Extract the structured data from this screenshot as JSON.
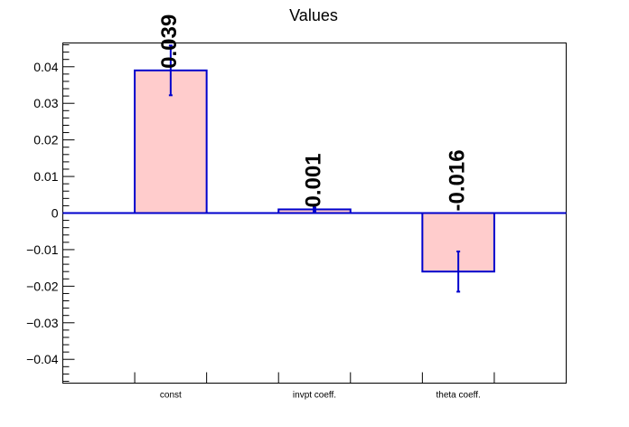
{
  "chart_data": {
    "type": "bar",
    "title": "Values",
    "xlabel": "",
    "ylabel": "",
    "categories": [
      "const",
      "invpt coeff.",
      "theta coeff."
    ],
    "values": [
      0.039,
      0.001,
      -0.016
    ],
    "errors": [
      0.0068,
      0.0005,
      0.0055
    ],
    "data_labels": [
      "0.039",
      "0.001",
      "-0.016"
    ],
    "ylim": [
      -0.0465,
      0.0465
    ],
    "yticks": [
      -0.04,
      -0.03,
      -0.02,
      -0.01,
      0,
      0.01,
      0.02,
      0.03,
      0.04
    ],
    "ytick_labels": [
      "−0.04",
      "−0.03",
      "−0.02",
      "−0.01",
      "0",
      "0.01",
      "0.02",
      "0.03",
      "0.04"
    ],
    "grid": false,
    "colors": {
      "bar_fill": "#ffcccc",
      "bar_stroke": "#0000cc",
      "error_bar": "#0000cc",
      "zero_line": "#0000cc",
      "axis": "#000000",
      "label": "#000000"
    }
  }
}
